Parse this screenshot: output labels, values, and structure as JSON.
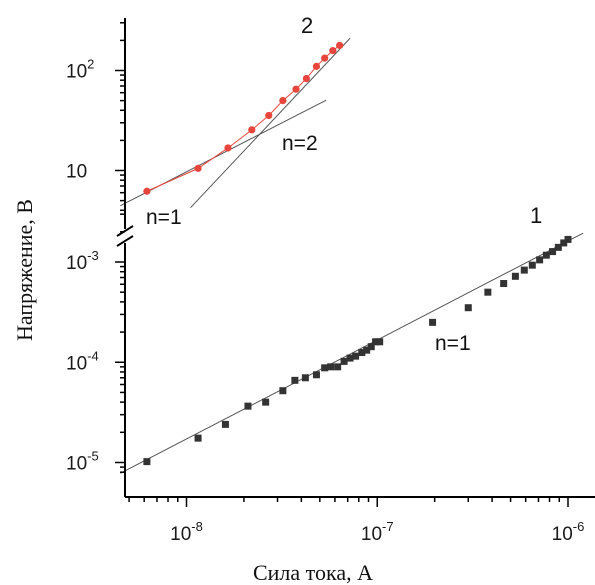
{
  "colors": {
    "series1_marker": "#333333",
    "series2_marker": "#e8463c",
    "series2_line": "#e8463c",
    "fit_line": "#555555",
    "axis": "#000000"
  },
  "labels": {
    "xlabel": "Сила тока, А",
    "ylabel": "Напряжение, В"
  },
  "chart_data": {
    "type": "scatter",
    "title": "",
    "xlabel": "Сила тока, А",
    "ylabel": "Напряжение, В",
    "x_scale": "log",
    "y_scale": "log (broken axis)",
    "xlim": [
      4.5e-09,
      1.2e-06
    ],
    "x_ticks": [
      {
        "base": "10",
        "exp": "-8",
        "value": 1e-08
      },
      {
        "base": "10",
        "exp": "-7",
        "value": 1e-07
      },
      {
        "base": "10",
        "exp": "-6",
        "value": 1e-06
      }
    ],
    "lower_panel": {
      "ylim": [
        8e-06,
        0.003
      ],
      "y_ticks": [
        {
          "base": "10",
          "exp": "-5",
          "value": 1e-05
        },
        {
          "base": "10",
          "exp": "-4",
          "value": 0.0001
        },
        {
          "base": "10",
          "exp": "-3",
          "value": 0.001
        }
      ]
    },
    "upper_panel": {
      "ylim": [
        4,
        300
      ],
      "y_ticks": [
        {
          "base": "10",
          "exp": "",
          "value": 10
        },
        {
          "base": "10",
          "exp": "2",
          "value": 100
        }
      ]
    },
    "grid": false,
    "series": [
      {
        "name": "1",
        "panel": "lower",
        "marker": "square",
        "x": [
          6.2e-09,
          1.15e-08,
          1.6e-08,
          2.1e-08,
          2.6e-08,
          3.2e-08,
          3.7e-08,
          4.2e-08,
          4.8e-08,
          5.3e-08,
          5.7e-08,
          6.2e-08,
          6.7e-08,
          7.2e-08,
          7.7e-08,
          8.3e-08,
          8.8e-08,
          9.3e-08,
          9.8e-08,
          1.03e-07,
          1.95e-07,
          3e-07,
          3.8e-07,
          4.6e-07,
          5.3e-07,
          5.9e-07,
          6.5e-07,
          7.1e-07,
          7.7e-07,
          8.3e-07,
          8.9e-07,
          9.5e-07,
          1e-06
        ],
        "y": [
          1.02e-05,
          1.75e-05,
          2.4e-05,
          3.65e-05,
          4e-05,
          5.2e-05,
          6.6e-05,
          7e-05,
          7.5e-05,
          8.8e-05,
          9e-05,
          9e-05,
          0.000102,
          0.00011,
          0.000115,
          0.000125,
          0.000132,
          0.000143,
          0.00016,
          0.00016,
          0.00025,
          0.00035,
          0.0005,
          0.00061,
          0.00072,
          0.00083,
          0.00093,
          0.00105,
          0.00117,
          0.00127,
          0.0014,
          0.00155,
          0.00168
        ]
      },
      {
        "name": "2",
        "panel": "upper",
        "marker": "circle",
        "x": [
          6.2e-09,
          1.15e-08,
          1.65e-08,
          2.2e-08,
          2.7e-08,
          3.2e-08,
          3.75e-08,
          4.25e-08,
          4.8e-08,
          5.3e-08,
          5.85e-08,
          6.35e-08
        ],
        "y": [
          6.2,
          10.5,
          16.8,
          25.5,
          35.5,
          50.0,
          65.0,
          83.0,
          110.0,
          133.0,
          158.0,
          178.0
        ]
      }
    ],
    "fit_lines": [
      {
        "panel": "lower",
        "x": [
          4.5e-09,
          1.2e-06
        ],
        "y": [
          7.8e-06,
          0.00194
        ]
      },
      {
        "panel": "upper",
        "x": [
          4.5e-09,
          5.4e-08
        ],
        "y": [
          4.45,
          50.5
        ]
      },
      {
        "panel": "upper",
        "x": [
          1.05e-08,
          7.2e-08
        ],
        "y": [
          4.25,
          210.0
        ]
      }
    ],
    "annotations": [
      {
        "text": "n=1",
        "panel": "lower"
      },
      {
        "text": "n=2",
        "panel": "upper"
      },
      {
        "text": "n=1",
        "panel": "upper"
      }
    ],
    "curve_labels": [
      "1",
      "2"
    ]
  }
}
